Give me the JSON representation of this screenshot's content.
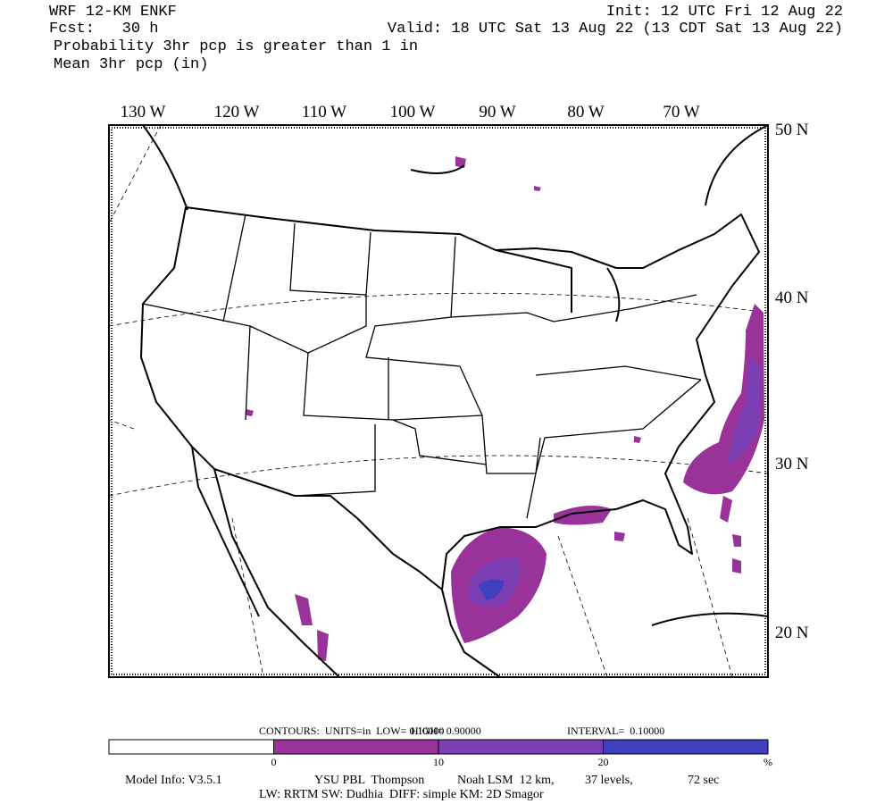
{
  "header": {
    "left": [
      "WRF 12-KM ENKF",
      "Fcst:   30 h",
      "Probability 3hr pcp is greater than 1 in",
      "Mean 3hr pcp (in)"
    ],
    "right": [
      "Init: 12 UTC Fri 12 Aug 22",
      "Valid: 18 UTC Sat 13 Aug 22 (13 CDT Sat 13 Aug 22)"
    ]
  },
  "map": {
    "lon_labels": [
      "130 W",
      "120 W",
      "110 W",
      "100 W",
      "90 W",
      "80 W",
      "70 W"
    ],
    "lat_labels": [
      "50 N",
      "40 N",
      "30 N",
      "20 N"
    ]
  },
  "colorbar": {
    "contours": [
      "CONTOURS:  UNITS=in  LOW= 0.10000",
      "HIGH= 0.90000",
      "INTERVAL=  0.10000"
    ],
    "labels": [
      "0",
      "10",
      "20",
      "%"
    ],
    "colors": [
      "#ffffff",
      "#993399",
      "#7b3fb3",
      "#3f3fbf"
    ]
  },
  "footer": {
    "line1": [
      "Model Info: V3.5.1",
      "YSU PBL  Thompson",
      "Noah LSM  12 km,",
      "37 levels,",
      "72 sec"
    ],
    "line2": "LW: RRTM SW: Dudhia  DIFF: simple KM: 2D Smagor"
  }
}
